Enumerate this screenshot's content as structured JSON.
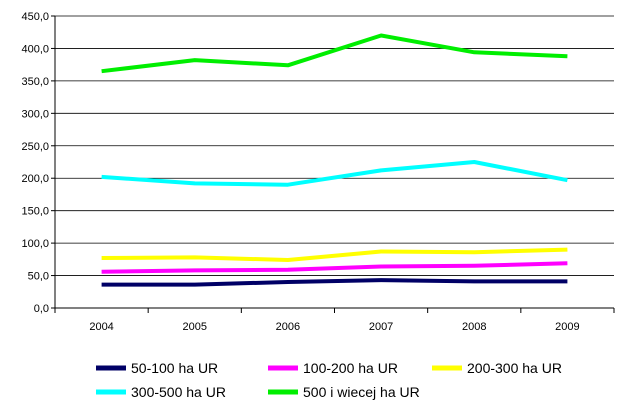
{
  "chart_data": {
    "type": "line",
    "title": "",
    "xlabel": "",
    "ylabel": "",
    "categories": [
      "2004",
      "2005",
      "2006",
      "2007",
      "2008",
      "2009"
    ],
    "ylim": [
      0,
      450
    ],
    "y_ticks": [
      0,
      50,
      100,
      150,
      200,
      250,
      300,
      350,
      400,
      450
    ],
    "y_tick_labels": [
      "0,0",
      "50,0",
      "100,0",
      "150,0",
      "200,0",
      "250,0",
      "300,0",
      "350,0",
      "400,0",
      "450,0"
    ],
    "grid": "horizontal",
    "legend_position": "bottom",
    "series": [
      {
        "name": "50-100 ha UR",
        "color": "#000066",
        "values": [
          36,
          36,
          40,
          43,
          41,
          41
        ]
      },
      {
        "name": "100-200 ha UR",
        "color": "#ff00ff",
        "values": [
          56,
          58,
          59,
          64,
          65,
          69
        ]
      },
      {
        "name": "200-300 ha UR",
        "color": "#ffff00",
        "values": [
          77,
          78,
          74,
          87,
          86,
          90
        ]
      },
      {
        "name": "300-500 ha UR",
        "color": "#00ffff",
        "values": [
          202,
          192,
          190,
          212,
          225,
          197
        ]
      },
      {
        "name": "500 i wiecej ha UR",
        "color": "#00ee00",
        "values": [
          365,
          382,
          374,
          420,
          394,
          388
        ]
      }
    ]
  }
}
